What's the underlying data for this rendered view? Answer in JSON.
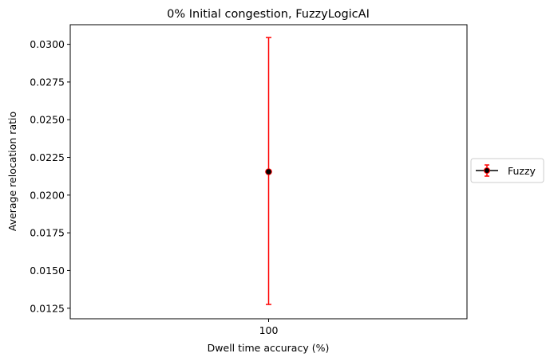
{
  "chart_data": {
    "type": "scatter",
    "title": "0% Initial congestion, FuzzyLogicAI",
    "xlabel": "Dwell time accuracy (%)",
    "ylabel": "Average relocation ratio",
    "categories": [
      "100"
    ],
    "ylim": [
      0.0118,
      0.0313
    ],
    "yticks": [
      0.0125,
      0.015,
      0.0175,
      0.02,
      0.0225,
      0.025,
      0.0275,
      0.03
    ],
    "ytick_labels": [
      "0.0125",
      "0.0150",
      "0.0175",
      "0.0200",
      "0.0225",
      "0.0250",
      "0.0275",
      "0.0300"
    ],
    "grid": false,
    "legend_position": "center-right, outside plot",
    "series": [
      {
        "name": "Fuzzy",
        "x": [
          "100"
        ],
        "y": [
          0.02155
        ],
        "yerr_low": [
          0.01275
        ],
        "yerr_high": [
          0.03045
        ],
        "marker_color": "#000000",
        "errorbar_color": "#ff0000"
      }
    ]
  }
}
